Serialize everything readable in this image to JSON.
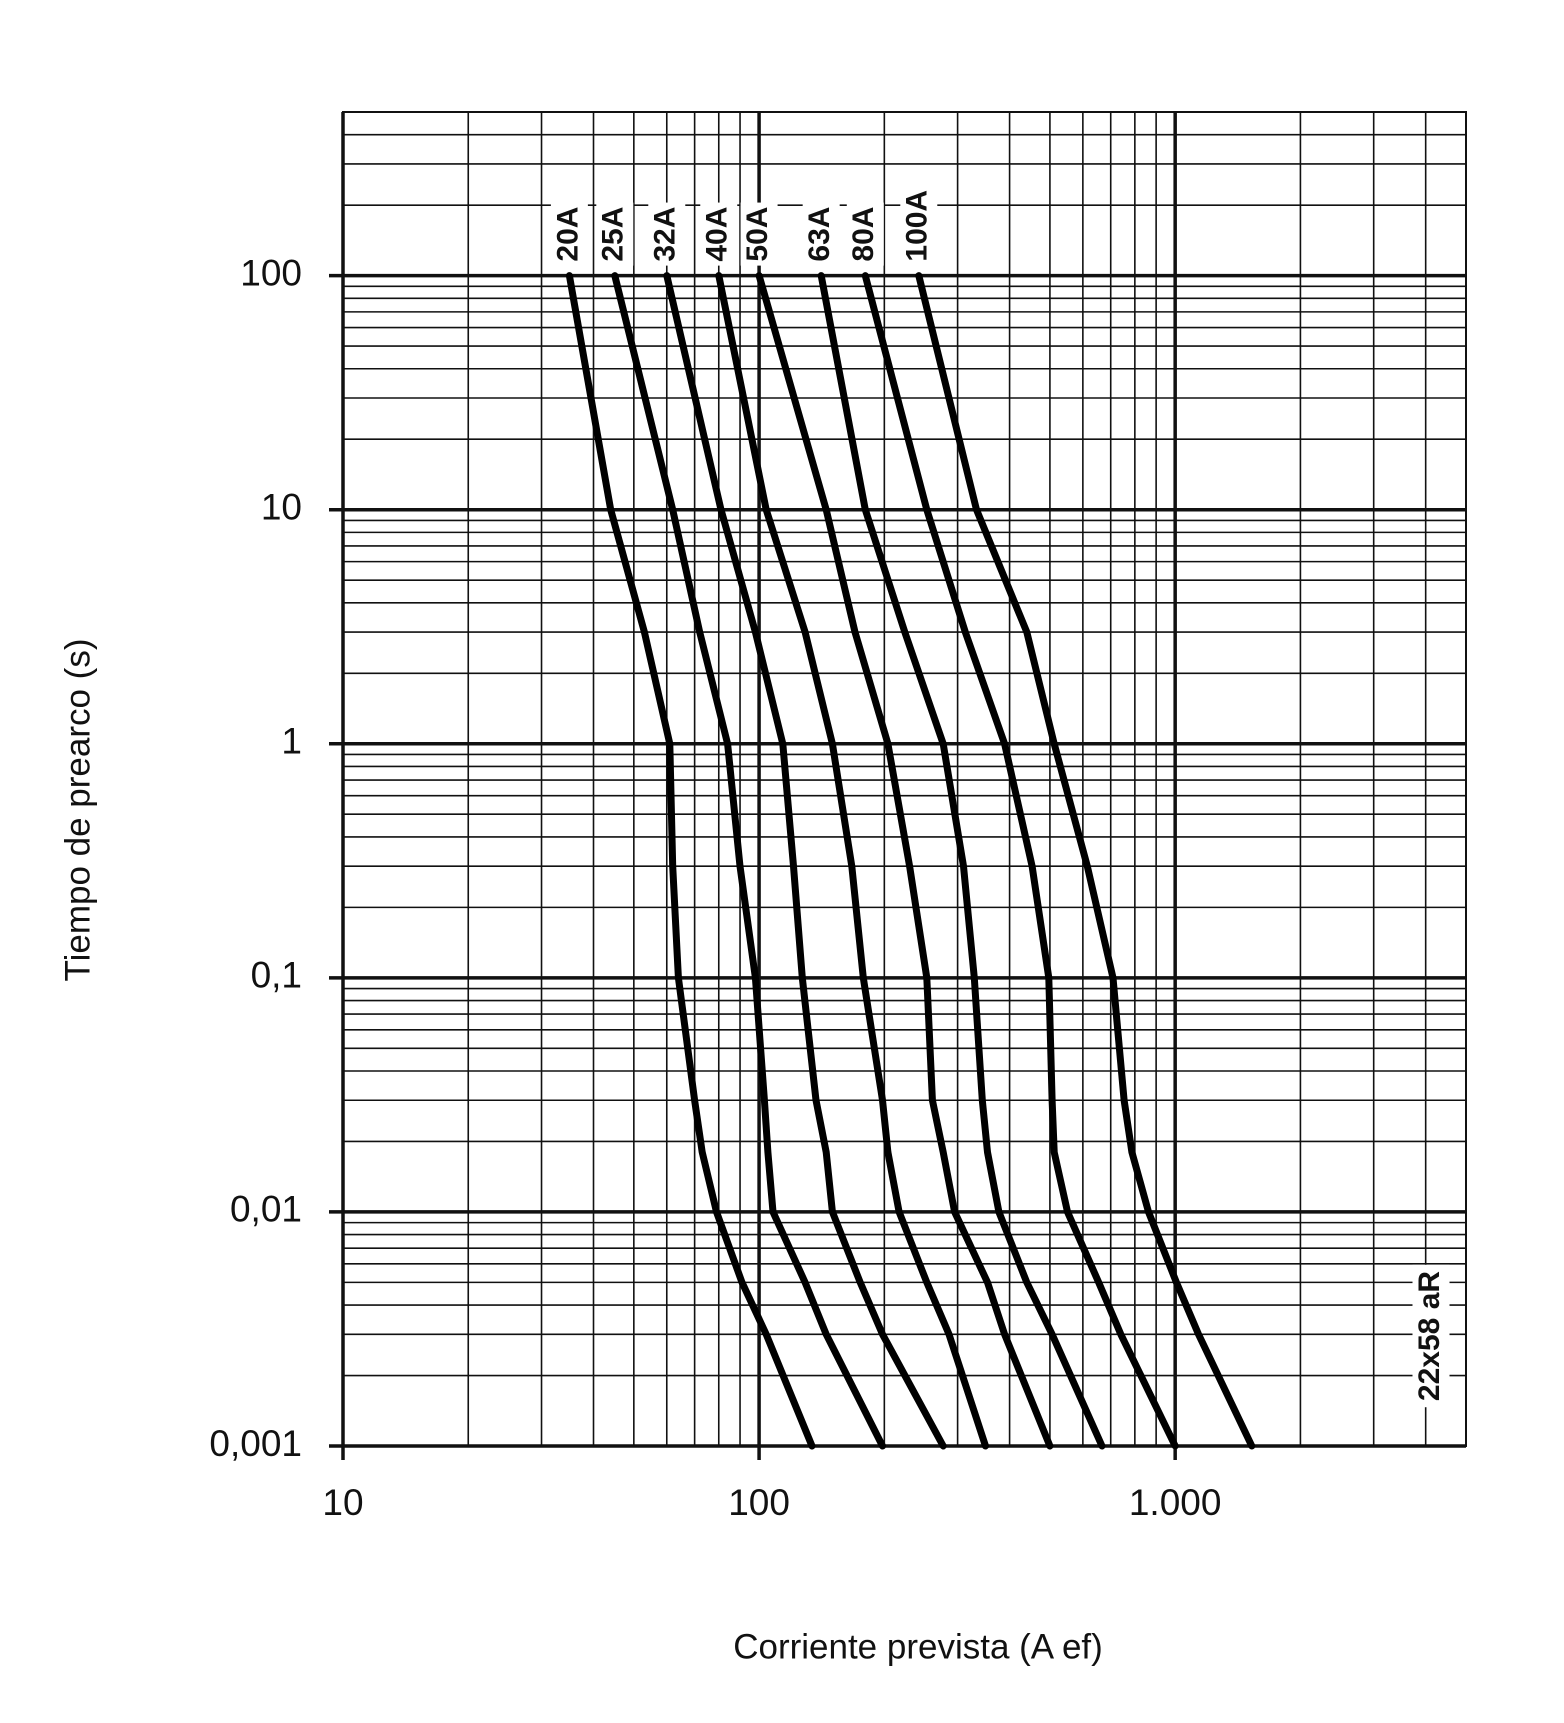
{
  "chart_data": {
    "type": "line",
    "x_label": "Corriente prevista (A ef)",
    "y_label": "Tiempo de prearco (s)",
    "annotation": "22x58 aR",
    "x_log": true,
    "y_log": true,
    "grid": true,
    "minor_grid": true,
    "xlim": [
      10,
      5000
    ],
    "ylim": [
      0.001,
      500
    ],
    "xticks": [
      10,
      100,
      {
        "value": 1000,
        "label": "1.000"
      }
    ],
    "yticks": [
      {
        "value": 0.001,
        "label": "0,001"
      },
      {
        "value": 0.01,
        "label": "0,01"
      },
      {
        "value": 0.1,
        "label": "0,1"
      },
      1,
      10,
      100
    ],
    "series": [
      {
        "name": "20A",
        "color": "#000000",
        "x": [
          35,
          44,
          53,
          61,
          62,
          64,
          70,
          73,
          79,
          91,
          104,
          134
        ],
        "values": [
          100,
          10,
          3,
          1,
          0.3,
          0.1,
          0.03,
          0.018,
          0.01,
          0.005,
          0.003,
          0.001
        ]
      },
      {
        "name": "25A",
        "color": "#000000",
        "x": [
          45,
          62,
          72,
          84,
          90,
          98,
          103,
          105,
          108,
          129,
          145,
          198
        ],
        "values": [
          100,
          10,
          3,
          1,
          0.3,
          0.1,
          0.03,
          0.018,
          0.01,
          0.005,
          0.003,
          0.001
        ]
      },
      {
        "name": "32A",
        "color": "#000000",
        "x": [
          60,
          81,
          98,
          114,
          121,
          127,
          137,
          145,
          150,
          175,
          198,
          277
        ],
        "values": [
          100,
          10,
          3,
          1,
          0.3,
          0.1,
          0.03,
          0.018,
          0.01,
          0.005,
          0.003,
          0.001
        ]
      },
      {
        "name": "40A",
        "color": "#000000",
        "x": [
          80,
          104,
          129,
          150,
          167,
          178,
          198,
          204,
          217,
          253,
          286,
          350
        ],
        "values": [
          100,
          10,
          3,
          1,
          0.3,
          0.1,
          0.03,
          0.018,
          0.01,
          0.005,
          0.003,
          0.001
        ]
      },
      {
        "name": "50A",
        "color": "#000000",
        "x": [
          100,
          145,
          170,
          204,
          230,
          253,
          261,
          277,
          295,
          354,
          389,
          500
        ],
        "values": [
          100,
          10,
          3,
          1,
          0.3,
          0.1,
          0.03,
          0.018,
          0.01,
          0.005,
          0.003,
          0.001
        ]
      },
      {
        "name": "63A",
        "color": "#000000",
        "x": [
          141,
          180,
          224,
          277,
          310,
          329,
          344,
          354,
          377,
          440,
          506,
          667
        ],
        "values": [
          100,
          10,
          3,
          1,
          0.3,
          0.1,
          0.03,
          0.018,
          0.01,
          0.005,
          0.003,
          0.001
        ]
      },
      {
        "name": "80A",
        "color": "#000000",
        "x": [
          180,
          253,
          313,
          389,
          453,
          497,
          506,
          512,
          551,
          655,
          740,
          1000
        ],
        "values": [
          100,
          10,
          3,
          1,
          0.3,
          0.1,
          0.03,
          0.018,
          0.01,
          0.005,
          0.003,
          0.001
        ]
      },
      {
        "name": "100A",
        "color": "#000000",
        "x": [
          242,
          333,
          440,
          512,
          615,
          709,
          754,
          787,
          863,
          1007,
          1138,
          1528
        ],
        "values": [
          100,
          10,
          3,
          1,
          0.3,
          0.1,
          0.03,
          0.018,
          0.01,
          0.005,
          0.003,
          0.001
        ]
      }
    ]
  }
}
